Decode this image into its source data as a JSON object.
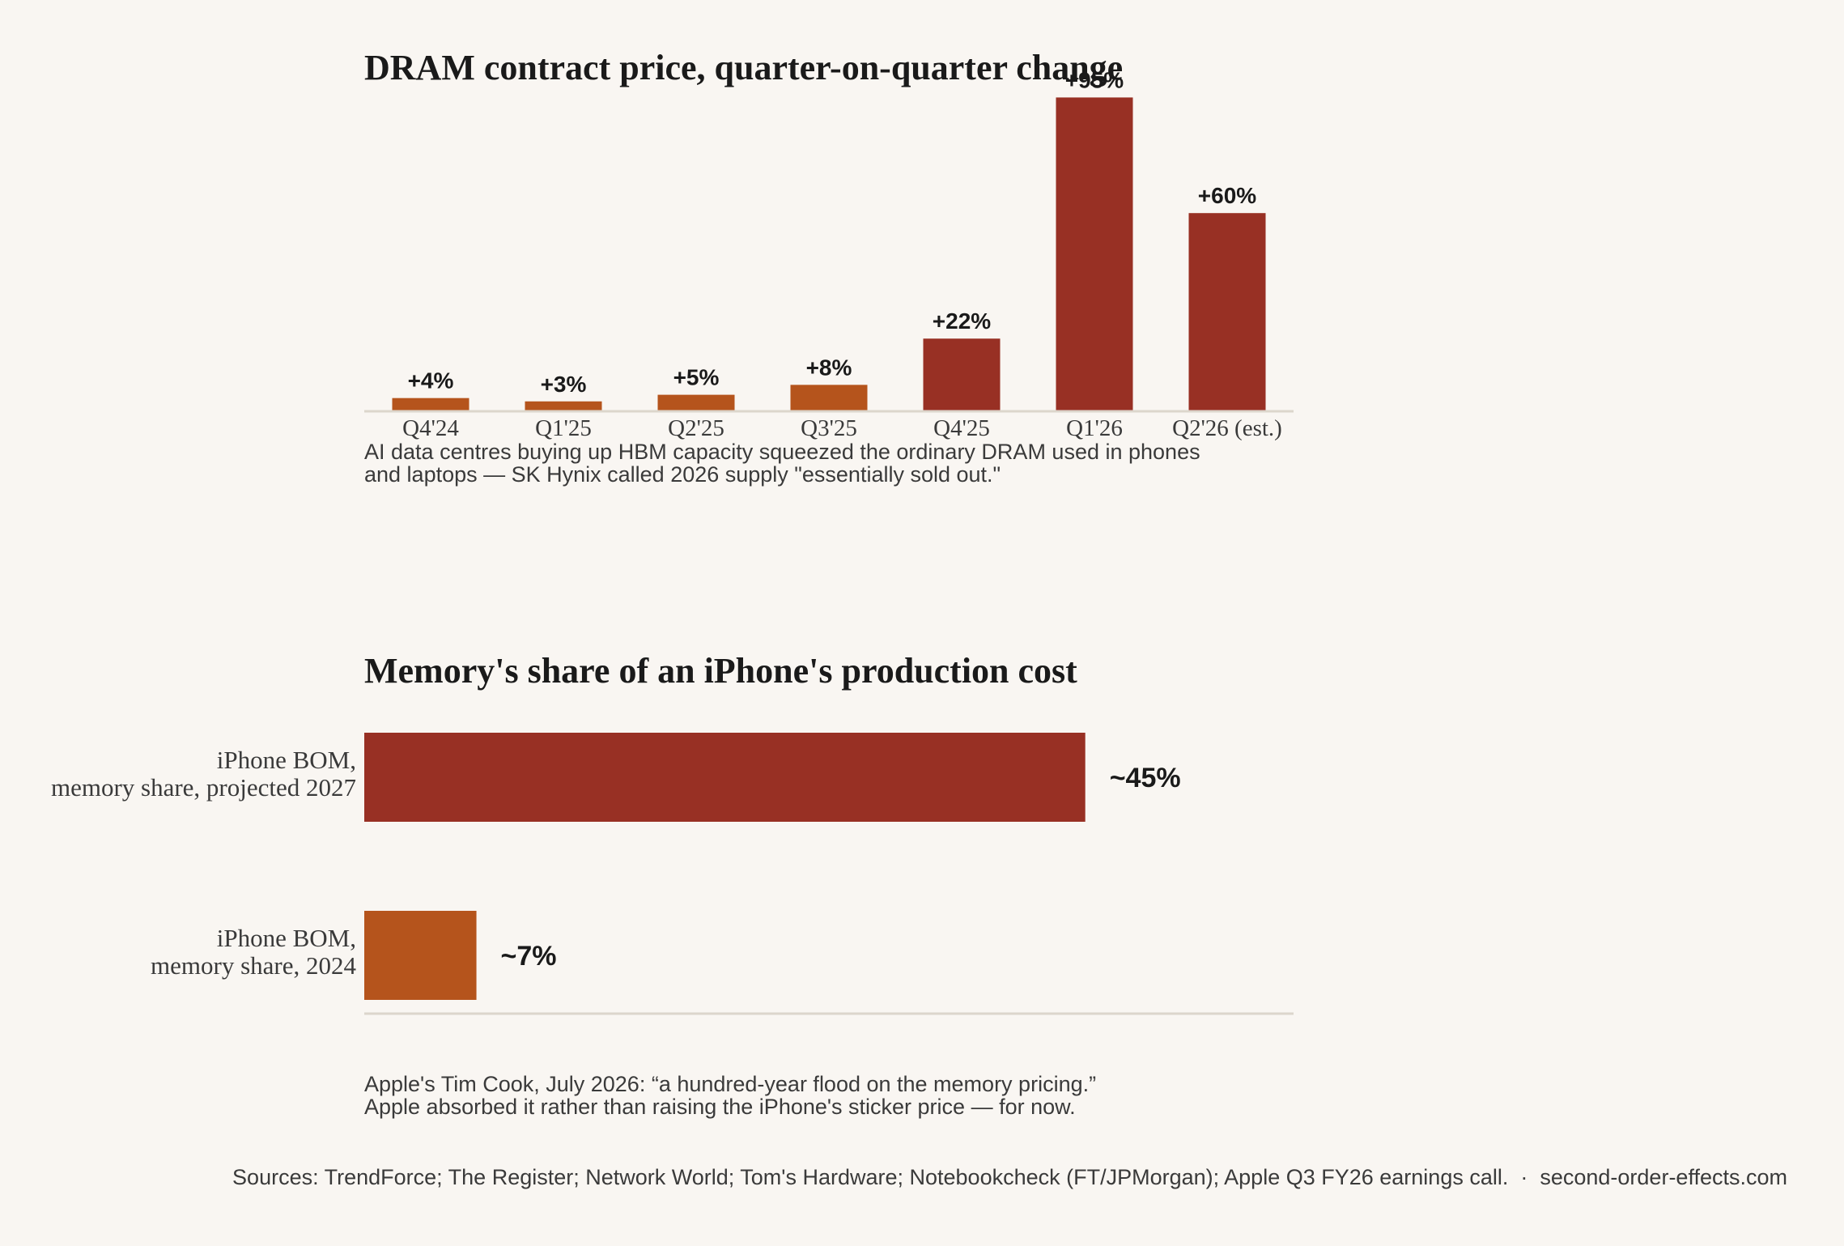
{
  "chart_data": [
    {
      "type": "bar",
      "title": "DRAM contract price, quarter-on-quarter change",
      "categories": [
        "Q4'24",
        "Q1'25",
        "Q2'25",
        "Q3'25",
        "Q4'25",
        "Q1'26",
        "Q2'26 (est.)"
      ],
      "values": [
        4,
        3,
        5,
        8,
        22,
        95,
        60
      ],
      "data_labels": [
        "+4%",
        "+3%",
        "+5%",
        "+8%",
        "+22%",
        "+95%",
        "+60%"
      ],
      "ylim": [
        0,
        100
      ],
      "grid": false,
      "note_lines": [
        "AI data centres buying up HBM capacity squeezed the ordinary DRAM used in phones",
        "and laptops — SK Hynix called 2026 supply \"essentially sold out.\""
      ],
      "colors": {
        "low": "#b5541c",
        "high": "#983024"
      }
    },
    {
      "type": "bar",
      "orientation": "horizontal",
      "title": "Memory's share of an iPhone's production cost",
      "categories": [
        [
          "iPhone BOM,",
          "memory share, projected 2027"
        ],
        [
          "iPhone BOM,",
          "memory share, 2024"
        ]
      ],
      "values": [
        45,
        7
      ],
      "data_labels": [
        "~45%",
        "~7%"
      ],
      "xlim": [
        0,
        58
      ],
      "grid": false,
      "note_lines": [
        "Apple's Tim Cook, July 2026: “a hundred-year flood on the memory pricing.”",
        "Apple absorbed it rather than raising the iPhone's sticker price — for now."
      ],
      "colors": {
        "projected": "#983024",
        "current": "#b5541c"
      }
    }
  ],
  "footer": "Sources: TrendForce; The Register; Network World; Tom's Hardware; Notebookcheck (FT/JPMorgan); Apple Q3 FY26 earnings call.  ·  second-order-effects.com"
}
